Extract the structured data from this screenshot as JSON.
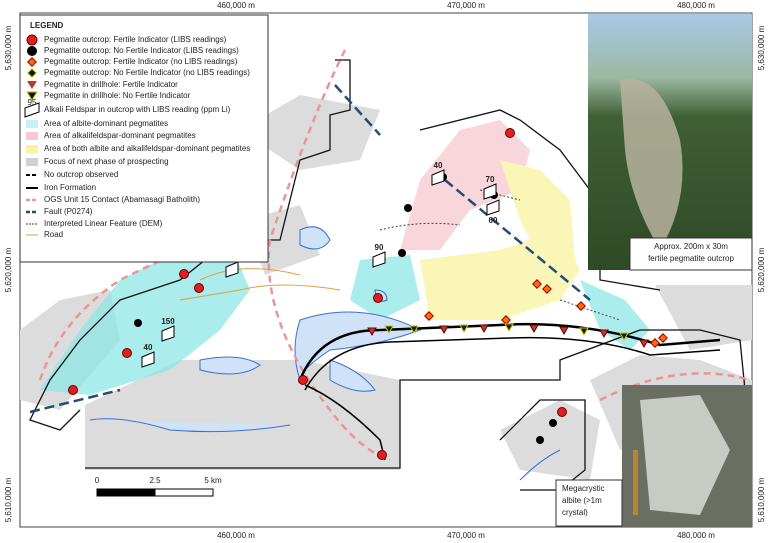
{
  "axes": {
    "top": [
      "460,000 m",
      "470,000 m",
      "480,000 m"
    ],
    "bottom": [
      "460,000 m",
      "470,000 m",
      "480,000 m"
    ],
    "left": [
      "5,630,000 m",
      "5,620,000 m",
      "5,610,000 m"
    ],
    "right": [
      "5,630,000 m",
      "5,620,000 m",
      "5,610,000 m"
    ]
  },
  "legend": {
    "title": "LEGEND",
    "items": [
      {
        "label": "Pegmatite outcrop: Fertile Indicator (LIBS readings)"
      },
      {
        "label": "Pegmatite outcrop: No Fertile Indicator (LIBS readings)"
      },
      {
        "label": "Pegmatite outcrop: Fertile Indicator (no LIBS readings)"
      },
      {
        "label": "Pegmatite outcrop: No Fertile Indicator (no LIBS readings)"
      },
      {
        "label": "Pegmatite in drillhole: Fertile Indicator"
      },
      {
        "label": "Pegmatite in drillhole: No Fertile Indicator"
      },
      {
        "label": "Alkali Feldspar in outcrop with LIBS reading (ppm Li)",
        "symbol_label": "95"
      },
      {
        "label": "Area of albite-dominant pegmatites"
      },
      {
        "label": "Area of alkalifeldspar-dominant pegmatites"
      },
      {
        "label": "Area of both albite and alkalifeldspar-dominant pegmatites"
      },
      {
        "label": "Focus of next phase of prospecting"
      },
      {
        "label": "No outcrop observed"
      },
      {
        "label": "Iron Formation"
      },
      {
        "label": "OGS Unit 15 Contact (Abamasagi Batholith)"
      },
      {
        "label": "Fault (P0274)"
      },
      {
        "label": "Interpreted Linear Feature (DEM)"
      },
      {
        "label": "Road"
      }
    ]
  },
  "li_readings": [
    "95",
    "150",
    "40",
    "90",
    "40",
    "70",
    "60"
  ],
  "scale_bar": [
    "0",
    "2.5",
    "5 km"
  ],
  "photos": [
    {
      "caption": [
        "Approx. 200m x 30m",
        "fertile pegmatite outcrop"
      ]
    },
    {
      "caption": [
        "Megacrystic",
        "albite (>1m",
        "crystal)"
      ]
    }
  ]
}
